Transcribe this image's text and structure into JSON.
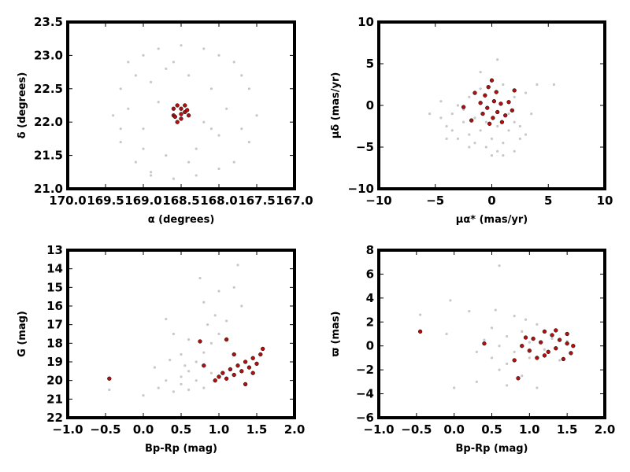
{
  "chart_data": [
    {
      "type": "scatter",
      "xlabel": "α (degrees)",
      "ylabel": "δ (degrees)",
      "xlim": [
        170.0,
        167.0
      ],
      "ylim": [
        21.0,
        23.5
      ],
      "xticks": [
        "170.0",
        "169.5",
        "169.0",
        "168.5",
        "168.0",
        "167.5",
        "167.0"
      ],
      "yticks": [
        "21.0",
        "21.5",
        "22.0",
        "22.5",
        "23.0",
        "23.5"
      ],
      "series": [
        {
          "role": "field",
          "color": "#c8c8c8",
          "points": [
            [
              169.4,
              22.1
            ],
            [
              169.3,
              22.5
            ],
            [
              169.2,
              22.9
            ],
            [
              169.0,
              23.0
            ],
            [
              168.8,
              23.1
            ],
            [
              168.5,
              23.15
            ],
            [
              168.2,
              23.1
            ],
            [
              168.0,
              23.0
            ],
            [
              167.8,
              22.9
            ],
            [
              167.6,
              22.5
            ],
            [
              167.5,
              22.1
            ],
            [
              167.6,
              21.7
            ],
            [
              167.8,
              21.4
            ],
            [
              168.0,
              21.3
            ],
            [
              168.3,
              21.2
            ],
            [
              168.6,
              21.15
            ],
            [
              168.9,
              21.25
            ],
            [
              169.1,
              21.4
            ],
            [
              169.3,
              21.7
            ],
            [
              169.2,
              22.2
            ],
            [
              169.0,
              21.9
            ],
            [
              168.9,
              22.6
            ],
            [
              168.7,
              22.8
            ],
            [
              168.4,
              22.7
            ],
            [
              168.1,
              22.5
            ],
            [
              167.9,
              22.2
            ],
            [
              168.0,
              21.8
            ],
            [
              168.3,
              21.6
            ],
            [
              168.7,
              21.5
            ],
            [
              169.0,
              21.6
            ],
            [
              168.8,
              22.3
            ],
            [
              168.2,
              22.0
            ],
            [
              168.6,
              22.9
            ],
            [
              168.4,
              21.4
            ],
            [
              169.1,
              22.7
            ],
            [
              167.7,
              22.7
            ],
            [
              167.7,
              21.9
            ],
            [
              169.3,
              21.9
            ],
            [
              168.9,
              21.2
            ],
            [
              168.1,
              21.9
            ]
          ]
        },
        {
          "role": "members",
          "color": "#b01010",
          "points": [
            [
              168.55,
              22.25
            ],
            [
              168.5,
              22.2
            ],
            [
              168.45,
              22.15
            ],
            [
              168.6,
              22.1
            ],
            [
              168.5,
              22.05
            ],
            [
              168.4,
              22.1
            ],
            [
              168.55,
              22.0
            ],
            [
              168.45,
              22.25
            ],
            [
              168.6,
              22.2
            ],
            [
              168.5,
              22.12
            ],
            [
              168.42,
              22.18
            ],
            [
              168.58,
              22.08
            ]
          ]
        }
      ]
    },
    {
      "type": "scatter",
      "xlabel": "μα* (mas/yr)",
      "ylabel": "μδ (mas/yr)",
      "xlim": [
        -10,
        10
      ],
      "ylim": [
        -10,
        10
      ],
      "xticks": [
        "−10",
        "−5",
        "0",
        "5",
        "10"
      ],
      "yticks": [
        "−10",
        "−5",
        "0",
        "5",
        "10"
      ],
      "series": [
        {
          "role": "field",
          "color": "#c8c8c8",
          "points": [
            [
              -4.5,
              -1.5
            ],
            [
              -4,
              -2.5
            ],
            [
              -3.5,
              -3
            ],
            [
              -3,
              -4
            ],
            [
              -2.5,
              -2
            ],
            [
              -2,
              -3.5
            ],
            [
              -1.5,
              -4.5
            ],
            [
              -1,
              -3
            ],
            [
              -0.5,
              -5
            ],
            [
              0,
              -4
            ],
            [
              0.5,
              -5.5
            ],
            [
              1,
              -4.5
            ],
            [
              1.5,
              -3
            ],
            [
              2,
              -2
            ],
            [
              2.5,
              -4
            ],
            [
              3,
              -3.5
            ],
            [
              -3,
              0
            ],
            [
              -2,
              1
            ],
            [
              -1,
              2
            ],
            [
              0,
              3
            ],
            [
              1,
              2.5
            ],
            [
              2,
              1
            ],
            [
              3,
              1.5
            ],
            [
              4,
              2.5
            ],
            [
              -5.5,
              -1
            ],
            [
              -4.5,
              0.5
            ],
            [
              -3.5,
              -1
            ],
            [
              -2.5,
              -0.5
            ],
            [
              -1.5,
              -1.5
            ],
            [
              -0.5,
              -2
            ],
            [
              0.5,
              -2.5
            ],
            [
              1.5,
              -1
            ],
            [
              2.5,
              -2.5
            ],
            [
              -4,
              -4
            ],
            [
              -2,
              -5
            ],
            [
              0,
              -6
            ],
            [
              1,
              -6
            ],
            [
              2,
              -5.5
            ],
            [
              3.5,
              -1
            ],
            [
              5.5,
              2.5
            ],
            [
              0.5,
              5.5
            ],
            [
              -1,
              4
            ]
          ]
        },
        {
          "role": "members",
          "color": "#b01010",
          "points": [
            [
              0,
              3
            ],
            [
              -0.3,
              2.2
            ],
            [
              0.4,
              1.6
            ],
            [
              -0.6,
              1.2
            ],
            [
              0.2,
              0.5
            ],
            [
              -1,
              0.3
            ],
            [
              0.8,
              0.2
            ],
            [
              -0.4,
              -0.3
            ],
            [
              0.5,
              -0.8
            ],
            [
              -0.8,
              -1
            ],
            [
              0.1,
              -1.5
            ],
            [
              1.2,
              -1.2
            ],
            [
              -1.5,
              1.5
            ],
            [
              1.5,
              0.4
            ],
            [
              -2.5,
              -0.2
            ],
            [
              -0.2,
              -2.2
            ],
            [
              0.9,
              -2
            ],
            [
              2,
              1.8
            ],
            [
              -1.8,
              -1.8
            ],
            [
              1.8,
              -0.6
            ]
          ]
        }
      ]
    },
    {
      "type": "scatter",
      "xlabel": "Bp-Rp (mag)",
      "ylabel": "G (mag)",
      "xlim": [
        -1.0,
        2.0
      ],
      "ylim": [
        22,
        13
      ],
      "xticks": [
        "−1.0",
        "−0.5",
        "0.0",
        "0.5",
        "1.0",
        "1.5",
        "2.0"
      ],
      "yticks": [
        "22",
        "21",
        "20",
        "19",
        "18",
        "17",
        "16",
        "15",
        "14",
        "13"
      ],
      "series": [
        {
          "role": "field",
          "color": "#c8c8c8",
          "points": [
            [
              -0.45,
              20.5
            ],
            [
              0.0,
              20.8
            ],
            [
              0.2,
              20.4
            ],
            [
              0.3,
              20.0
            ],
            [
              0.4,
              20.6
            ],
            [
              0.5,
              20.2
            ],
            [
              0.5,
              19.8
            ],
            [
              0.6,
              20.5
            ],
            [
              0.6,
              19.5
            ],
            [
              0.7,
              20.0
            ],
            [
              0.7,
              19.0
            ],
            [
              0.8,
              20.4
            ],
            [
              0.8,
              18.5
            ],
            [
              0.9,
              19.6
            ],
            [
              0.9,
              18.0
            ],
            [
              1.0,
              17.5
            ],
            [
              0.85,
              17.0
            ],
            [
              1.1,
              16.8
            ],
            [
              0.95,
              16.5
            ],
            [
              0.8,
              15.8
            ],
            [
              1.0,
              15.2
            ],
            [
              1.2,
              15.0
            ],
            [
              0.4,
              17.5
            ],
            [
              0.6,
              17.8
            ],
            [
              0.3,
              16.7
            ],
            [
              0.5,
              18.6
            ],
            [
              1.3,
              16.0
            ],
            [
              0.75,
              14.5
            ],
            [
              1.25,
              13.8
            ],
            [
              0.15,
              19.3
            ],
            [
              0.55,
              19.2
            ],
            [
              0.35,
              18.9
            ]
          ]
        },
        {
          "role": "members",
          "color": "#b01010",
          "points": [
            [
              -0.45,
              19.9
            ],
            [
              0.75,
              17.9
            ],
            [
              0.8,
              19.2
            ],
            [
              0.95,
              20.0
            ],
            [
              1.0,
              19.8
            ],
            [
              1.05,
              19.6
            ],
            [
              1.1,
              19.9
            ],
            [
              1.15,
              19.4
            ],
            [
              1.2,
              19.7
            ],
            [
              1.25,
              19.2
            ],
            [
              1.3,
              19.5
            ],
            [
              1.35,
              19.0
            ],
            [
              1.4,
              19.3
            ],
            [
              1.45,
              18.8
            ],
            [
              1.5,
              19.1
            ],
            [
              1.55,
              18.6
            ],
            [
              1.58,
              18.3
            ],
            [
              1.2,
              18.6
            ],
            [
              1.1,
              17.8
            ],
            [
              1.35,
              20.2
            ],
            [
              1.45,
              19.6
            ]
          ]
        }
      ]
    },
    {
      "type": "scatter",
      "xlabel": "Bp-Rp (mag)",
      "ylabel": "ϖ (mas)",
      "xlim": [
        -1.0,
        2.0
      ],
      "ylim": [
        -6,
        8
      ],
      "xticks": [
        "−1.0",
        "−0.5",
        "0.0",
        "0.5",
        "1.0",
        "1.5",
        "2.0"
      ],
      "yticks": [
        "−6",
        "−4",
        "−2",
        "0",
        "2",
        "4",
        "6",
        "8"
      ],
      "series": [
        {
          "role": "field",
          "color": "#c8c8c8",
          "points": [
            [
              -0.45,
              2.6
            ],
            [
              -0.1,
              1.0
            ],
            [
              -0.05,
              3.8
            ],
            [
              0.2,
              2.9
            ],
            [
              0.3,
              -0.5
            ],
            [
              0.4,
              0.5
            ],
            [
              0.5,
              -1.0
            ],
            [
              0.5,
              1.5
            ],
            [
              0.6,
              0.0
            ],
            [
              0.6,
              -2.0
            ],
            [
              0.6,
              6.7
            ],
            [
              0.7,
              0.8
            ],
            [
              0.7,
              -1.5
            ],
            [
              0.8,
              2.5
            ],
            [
              0.8,
              -0.5
            ],
            [
              0.9,
              1.2
            ],
            [
              0.9,
              -2.5
            ],
            [
              1.0,
              0.3
            ],
            [
              1.0,
              -1.0
            ],
            [
              1.1,
              1.8
            ],
            [
              1.2,
              -0.3
            ],
            [
              1.3,
              0.6
            ],
            [
              1.4,
              -1.2
            ],
            [
              1.5,
              0.4
            ],
            [
              0.3,
              -3.0
            ],
            [
              0.7,
              -3.3
            ],
            [
              1.1,
              -3.5
            ],
            [
              0.0,
              -3.5
            ],
            [
              0.55,
              3.0
            ],
            [
              0.95,
              2.2
            ]
          ]
        },
        {
          "role": "members",
          "color": "#b01010",
          "points": [
            [
              -0.45,
              1.2
            ],
            [
              0.4,
              0.2
            ],
            [
              0.8,
              -1.2
            ],
            [
              0.85,
              -2.7
            ],
            [
              0.9,
              0.0
            ],
            [
              1.0,
              -0.4
            ],
            [
              1.05,
              0.6
            ],
            [
              1.1,
              -1.0
            ],
            [
              1.15,
              0.3
            ],
            [
              1.2,
              1.2
            ],
            [
              1.25,
              -0.5
            ],
            [
              1.3,
              0.9
            ],
            [
              1.35,
              -0.2
            ],
            [
              1.4,
              0.5
            ],
            [
              1.45,
              -1.1
            ],
            [
              1.5,
              0.2
            ],
            [
              1.55,
              -0.6
            ],
            [
              1.5,
              1.0
            ],
            [
              1.2,
              -0.8
            ],
            [
              0.95,
              0.7
            ],
            [
              1.35,
              1.3
            ],
            [
              1.58,
              0.0
            ]
          ]
        }
      ]
    }
  ]
}
